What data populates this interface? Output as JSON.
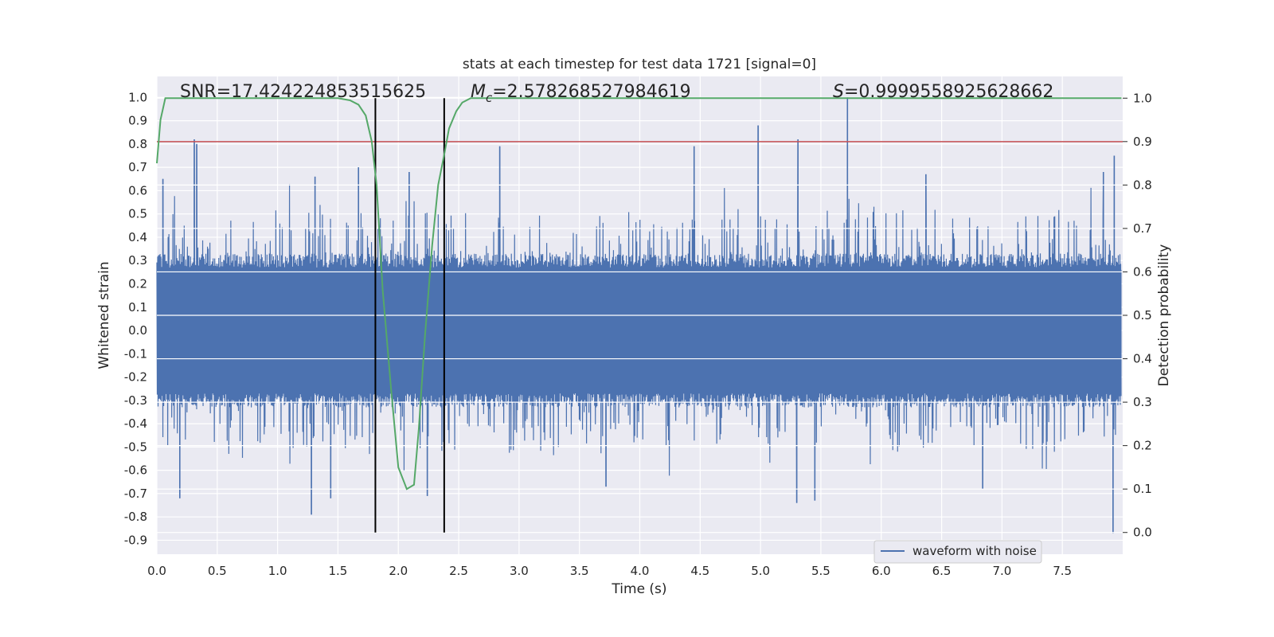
{
  "chart_data": {
    "type": "line",
    "title": "stats at each timestep for test data 1721 [signal=0]",
    "xlabel": "Time (s)",
    "ylabel": "Whitened strain",
    "ylabel_right": "Detection probability",
    "xlim": [
      0.0,
      8.0
    ],
    "ylim": [
      -0.96,
      1.09
    ],
    "ylim_right": [
      -0.05,
      1.05
    ],
    "x_ticks": [
      "0.0",
      "0.5",
      "1.0",
      "1.5",
      "2.0",
      "2.5",
      "3.0",
      "3.5",
      "4.0",
      "4.5",
      "5.0",
      "5.5",
      "6.0",
      "6.5",
      "7.0",
      "7.5"
    ],
    "y_ticks": [
      "-0.9",
      "-0.8",
      "-0.7",
      "-0.6",
      "-0.5",
      "-0.4",
      "-0.3",
      "-0.2",
      "-0.1",
      "0.0",
      "0.1",
      "0.2",
      "0.3",
      "0.4",
      "0.5",
      "0.6",
      "0.7",
      "0.8",
      "0.9",
      "1.0"
    ],
    "y_ticks_right": [
      "0.0",
      "0.1",
      "0.2",
      "0.3",
      "0.4",
      "0.5",
      "0.6",
      "0.7",
      "0.8",
      "0.9",
      "1.0"
    ],
    "grid": true,
    "background": "#eaeaf2",
    "annotations": {
      "snr": "SNR=17.424224853515625",
      "mc_symbol": "M",
      "mc_sub": "c",
      "mc_value": "=2.578268527984619",
      "s_symbol": "S",
      "s_value": "=0.9999558925628662"
    },
    "legend": {
      "placement": "lower-right",
      "entries": [
        "waveform with noise"
      ]
    },
    "series": [
      {
        "name": "waveform with noise",
        "color": "#4c72b0",
        "axis": "left",
        "description_values": {
          "dense_noise": true,
          "core_band": [
            -0.3,
            0.3
          ]
        },
        "peaks_positive": [
          [
            0.31,
            0.82
          ],
          [
            0.33,
            0.8
          ],
          [
            0.05,
            0.65
          ],
          [
            1.31,
            0.66
          ],
          [
            1.67,
            0.7
          ],
          [
            2.09,
            0.68
          ],
          [
            2.84,
            0.79
          ],
          [
            4.45,
            0.79
          ],
          [
            4.98,
            0.88
          ],
          [
            5.31,
            0.82
          ],
          [
            5.72,
            1.0
          ],
          [
            6.37,
            0.67
          ],
          [
            7.84,
            0.68
          ],
          [
            7.93,
            0.75
          ]
        ],
        "peaks_negative": [
          [
            0.19,
            -0.72
          ],
          [
            1.28,
            -0.79
          ],
          [
            1.44,
            -0.72
          ],
          [
            1.81,
            -0.62
          ],
          [
            2.24,
            -0.71
          ],
          [
            3.72,
            -0.67
          ],
          [
            5.3,
            -0.74
          ],
          [
            5.45,
            -0.73
          ],
          [
            6.84,
            -0.68
          ],
          [
            7.92,
            -0.87
          ]
        ]
      },
      {
        "name": "",
        "color": "#55a868",
        "axis": "right",
        "x": [
          0.0,
          0.03,
          0.07,
          0.1,
          0.5,
          1.0,
          1.5,
          1.6,
          1.67,
          1.73,
          1.78,
          1.82,
          1.87,
          1.94,
          2.0,
          2.07,
          2.13,
          2.17,
          2.22,
          2.28,
          2.33,
          2.38,
          2.42,
          2.48,
          2.53,
          2.6,
          2.67,
          3.0,
          4.0,
          5.0,
          6.0,
          7.0,
          7.99
        ],
        "values": [
          0.85,
          0.95,
          1.0,
          1.0,
          1.0,
          1.0,
          1.0,
          0.995,
          0.985,
          0.96,
          0.9,
          0.8,
          0.56,
          0.33,
          0.15,
          0.1,
          0.11,
          0.24,
          0.45,
          0.66,
          0.8,
          0.87,
          0.93,
          0.97,
          0.99,
          1.0,
          1.0,
          1.0,
          1.0,
          1.0,
          1.0,
          1.0,
          1.0
        ]
      }
    ],
    "threshold": {
      "color": "#c44e52",
      "axis": "right",
      "value": 0.9
    },
    "vlines": {
      "color": "#000000",
      "x": [
        1.81,
        2.38
      ],
      "axis_right_range": [
        0.0,
        1.0
      ]
    }
  }
}
